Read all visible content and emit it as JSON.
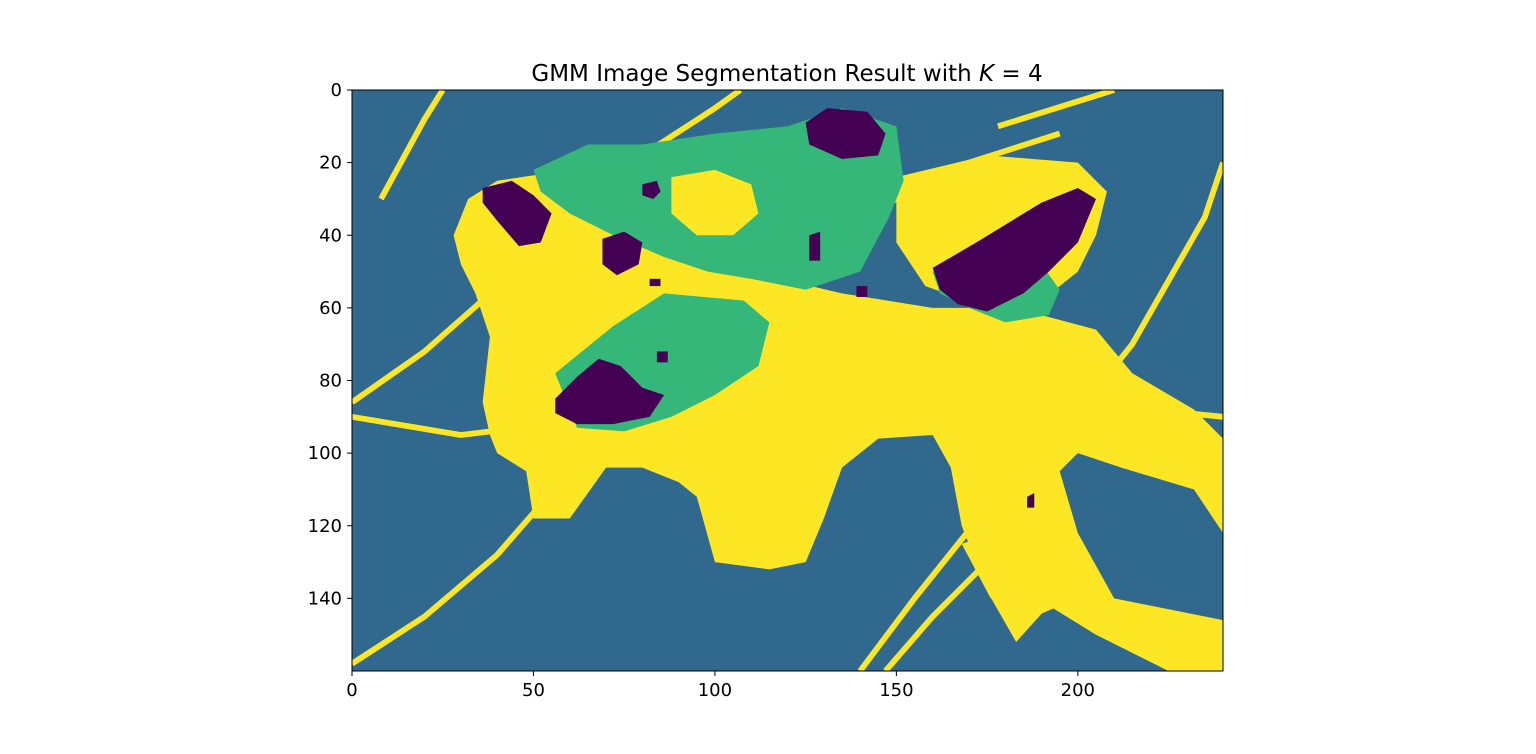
{
  "chart_data": {
    "type": "heatmap",
    "title_prefix": "GMM Image Segmentation Result with ",
    "title_k_symbol": "K",
    "title_k_eq": " = 4",
    "x_ticks": [
      "0",
      "50",
      "100",
      "150",
      "200"
    ],
    "y_ticks": [
      "0",
      "20",
      "40",
      "60",
      "80",
      "100",
      "120",
      "140"
    ],
    "xlim": [
      0,
      240
    ],
    "ylim": [
      160,
      0
    ],
    "k": 4,
    "cluster_colors": [
      "#440154",
      "#31688e",
      "#35b779",
      "#fde725"
    ],
    "background_cluster": 1,
    "regions": [
      {
        "cluster": 3,
        "polygon": [
          [
            40,
            25
          ],
          [
            60,
            22
          ],
          [
            80,
            26
          ],
          [
            95,
            32
          ],
          [
            108,
            44
          ],
          [
            118,
            52
          ],
          [
            135,
            56
          ],
          [
            160,
            60
          ],
          [
            175,
            60
          ],
          [
            190,
            62
          ],
          [
            205,
            66
          ],
          [
            215,
            78
          ],
          [
            232,
            88
          ],
          [
            240,
            96
          ],
          [
            240,
            122
          ],
          [
            232,
            110
          ],
          [
            212,
            104
          ],
          [
            200,
            100
          ],
          [
            195,
            105
          ],
          [
            200,
            122
          ],
          [
            210,
            140
          ],
          [
            240,
            146
          ],
          [
            240,
            160
          ],
          [
            225,
            160
          ],
          [
            205,
            150
          ],
          [
            192,
            142
          ],
          [
            183,
            152
          ],
          [
            175,
            138
          ],
          [
            168,
            120
          ],
          [
            165,
            104
          ],
          [
            160,
            95
          ],
          [
            145,
            96
          ],
          [
            135,
            104
          ],
          [
            130,
            118
          ],
          [
            125,
            130
          ],
          [
            115,
            132
          ],
          [
            100,
            130
          ],
          [
            95,
            112
          ],
          [
            90,
            108
          ],
          [
            80,
            104
          ],
          [
            70,
            104
          ],
          [
            60,
            118
          ],
          [
            50,
            118
          ],
          [
            48,
            105
          ],
          [
            40,
            100
          ],
          [
            38,
            95
          ],
          [
            36,
            86
          ],
          [
            38,
            68
          ],
          [
            34,
            56
          ],
          [
            30,
            48
          ],
          [
            28,
            40
          ],
          [
            32,
            30
          ]
        ]
      },
      {
        "cluster": 3,
        "polygon": [
          [
            150,
            24
          ],
          [
            175,
            18
          ],
          [
            200,
            20
          ],
          [
            208,
            28
          ],
          [
            205,
            40
          ],
          [
            200,
            50
          ],
          [
            190,
            58
          ],
          [
            175,
            60
          ],
          [
            158,
            54
          ],
          [
            150,
            42
          ]
        ]
      },
      {
        "cluster": 3,
        "polygon": [
          [
            168,
            125
          ],
          [
            182,
            120
          ],
          [
            195,
            122
          ],
          [
            200,
            140
          ],
          [
            188,
            145
          ],
          [
            176,
            140
          ]
        ]
      },
      {
        "cluster": 2,
        "polygon": [
          [
            50,
            22
          ],
          [
            65,
            15
          ],
          [
            80,
            15
          ],
          [
            100,
            12
          ],
          [
            120,
            10
          ],
          [
            135,
            5
          ],
          [
            150,
            10
          ],
          [
            152,
            25
          ],
          [
            148,
            35
          ],
          [
            140,
            50
          ],
          [
            125,
            55
          ],
          [
            110,
            52
          ],
          [
            98,
            50
          ],
          [
            86,
            46
          ],
          [
            72,
            40
          ],
          [
            60,
            34
          ],
          [
            52,
            28
          ]
        ]
      },
      {
        "cluster": 2,
        "polygon": [
          [
            160,
            50
          ],
          [
            172,
            46
          ],
          [
            182,
            44
          ],
          [
            190,
            48
          ],
          [
            195,
            55
          ],
          [
            192,
            62
          ],
          [
            180,
            64
          ],
          [
            170,
            60
          ],
          [
            162,
            56
          ]
        ]
      },
      {
        "cluster": 2,
        "polygon": [
          [
            56,
            78
          ],
          [
            72,
            65
          ],
          [
            86,
            56
          ],
          [
            108,
            58
          ],
          [
            115,
            64
          ],
          [
            112,
            76
          ],
          [
            100,
            84
          ],
          [
            88,
            90
          ],
          [
            75,
            94
          ],
          [
            62,
            93
          ]
        ]
      },
      {
        "cluster": 3,
        "polygon": [
          [
            88,
            24
          ],
          [
            100,
            22
          ],
          [
            110,
            26
          ],
          [
            112,
            34
          ],
          [
            105,
            40
          ],
          [
            95,
            40
          ],
          [
            88,
            34
          ]
        ]
      },
      {
        "cluster": 0,
        "polygon": [
          [
            36,
            27
          ],
          [
            44,
            25
          ],
          [
            50,
            29
          ],
          [
            55,
            34
          ],
          [
            52,
            42
          ],
          [
            46,
            43
          ],
          [
            40,
            36
          ],
          [
            36,
            31
          ]
        ]
      },
      {
        "cluster": 0,
        "polygon": [
          [
            125,
            9
          ],
          [
            131,
            5
          ],
          [
            142,
            6
          ],
          [
            147,
            12
          ],
          [
            145,
            18
          ],
          [
            135,
            19
          ],
          [
            126,
            15
          ]
        ]
      },
      {
        "cluster": 0,
        "polygon": [
          [
            160,
            49
          ],
          [
            172,
            42
          ],
          [
            190,
            31
          ],
          [
            200,
            27
          ],
          [
            205,
            30
          ],
          [
            200,
            42
          ],
          [
            192,
            50
          ],
          [
            185,
            56
          ],
          [
            175,
            61
          ],
          [
            167,
            59
          ],
          [
            162,
            55
          ]
        ]
      },
      {
        "cluster": 0,
        "polygon": [
          [
            56,
            85
          ],
          [
            62,
            79
          ],
          [
            68,
            74
          ],
          [
            74,
            76
          ],
          [
            80,
            82
          ],
          [
            86,
            84
          ],
          [
            82,
            90
          ],
          [
            72,
            92
          ],
          [
            62,
            92
          ],
          [
            56,
            89
          ]
        ]
      },
      {
        "cluster": 0,
        "polygon": [
          [
            69,
            41
          ],
          [
            75,
            39
          ],
          [
            80,
            42
          ],
          [
            79,
            48
          ],
          [
            73,
            51
          ],
          [
            69,
            48
          ]
        ]
      },
      {
        "cluster": 0,
        "polygon": [
          [
            80,
            26
          ],
          [
            84,
            25
          ],
          [
            85,
            28
          ],
          [
            83,
            30
          ],
          [
            80,
            29
          ]
        ]
      },
      {
        "cluster": 0,
        "polygon": [
          [
            82,
            52
          ],
          [
            85,
            52
          ],
          [
            85,
            54
          ],
          [
            82,
            54
          ]
        ]
      },
      {
        "cluster": 0,
        "polygon": [
          [
            84,
            72
          ],
          [
            87,
            72
          ],
          [
            87,
            75
          ],
          [
            84,
            75
          ]
        ]
      },
      {
        "cluster": 0,
        "polygon": [
          [
            139,
            54
          ],
          [
            142,
            54
          ],
          [
            142,
            57
          ],
          [
            139,
            57
          ]
        ]
      },
      {
        "cluster": 0,
        "polygon": [
          [
            126,
            40
          ],
          [
            129,
            39
          ],
          [
            129,
            47
          ],
          [
            126,
            47
          ]
        ]
      },
      {
        "cluster": 0,
        "polygon": [
          [
            186,
            112
          ],
          [
            188,
            111
          ],
          [
            188,
            115
          ],
          [
            186,
            115
          ]
        ]
      }
    ],
    "lines": [
      {
        "cluster": 3,
        "points": [
          [
            0,
            86
          ],
          [
            20,
            72
          ],
          [
            45,
            50
          ],
          [
            65,
            30
          ],
          [
            80,
            18
          ],
          [
            100,
            5
          ],
          [
            107,
            0
          ]
        ],
        "width": 1
      },
      {
        "cluster": 3,
        "points": [
          [
            0,
            158
          ],
          [
            20,
            145
          ],
          [
            40,
            128
          ],
          [
            60,
            105
          ],
          [
            80,
            85
          ]
        ],
        "width": 1
      },
      {
        "cluster": 3,
        "points": [
          [
            0,
            90
          ],
          [
            30,
            95
          ],
          [
            55,
            92
          ]
        ],
        "width": 1
      },
      {
        "cluster": 3,
        "points": [
          [
            140,
            160
          ],
          [
            155,
            140
          ],
          [
            175,
            115
          ],
          [
            195,
            95
          ],
          [
            215,
            70
          ],
          [
            235,
            35
          ],
          [
            240,
            20
          ]
        ],
        "width": 1
      },
      {
        "cluster": 3,
        "points": [
          [
            147,
            160
          ],
          [
            160,
            145
          ],
          [
            180,
            125
          ]
        ],
        "width": 1
      },
      {
        "cluster": 3,
        "points": [
          [
            178,
            10
          ],
          [
            210,
            0
          ]
        ],
        "width": 1
      },
      {
        "cluster": 3,
        "points": [
          [
            140,
            35
          ],
          [
            170,
            20
          ],
          [
            195,
            12
          ]
        ],
        "width": 1
      },
      {
        "cluster": 3,
        "points": [
          [
            8,
            30
          ],
          [
            20,
            8
          ],
          [
            25,
            0
          ]
        ],
        "width": 1
      },
      {
        "cluster": 3,
        "points": [
          [
            220,
            88
          ],
          [
            240,
            90
          ]
        ],
        "width": 1
      }
    ]
  }
}
